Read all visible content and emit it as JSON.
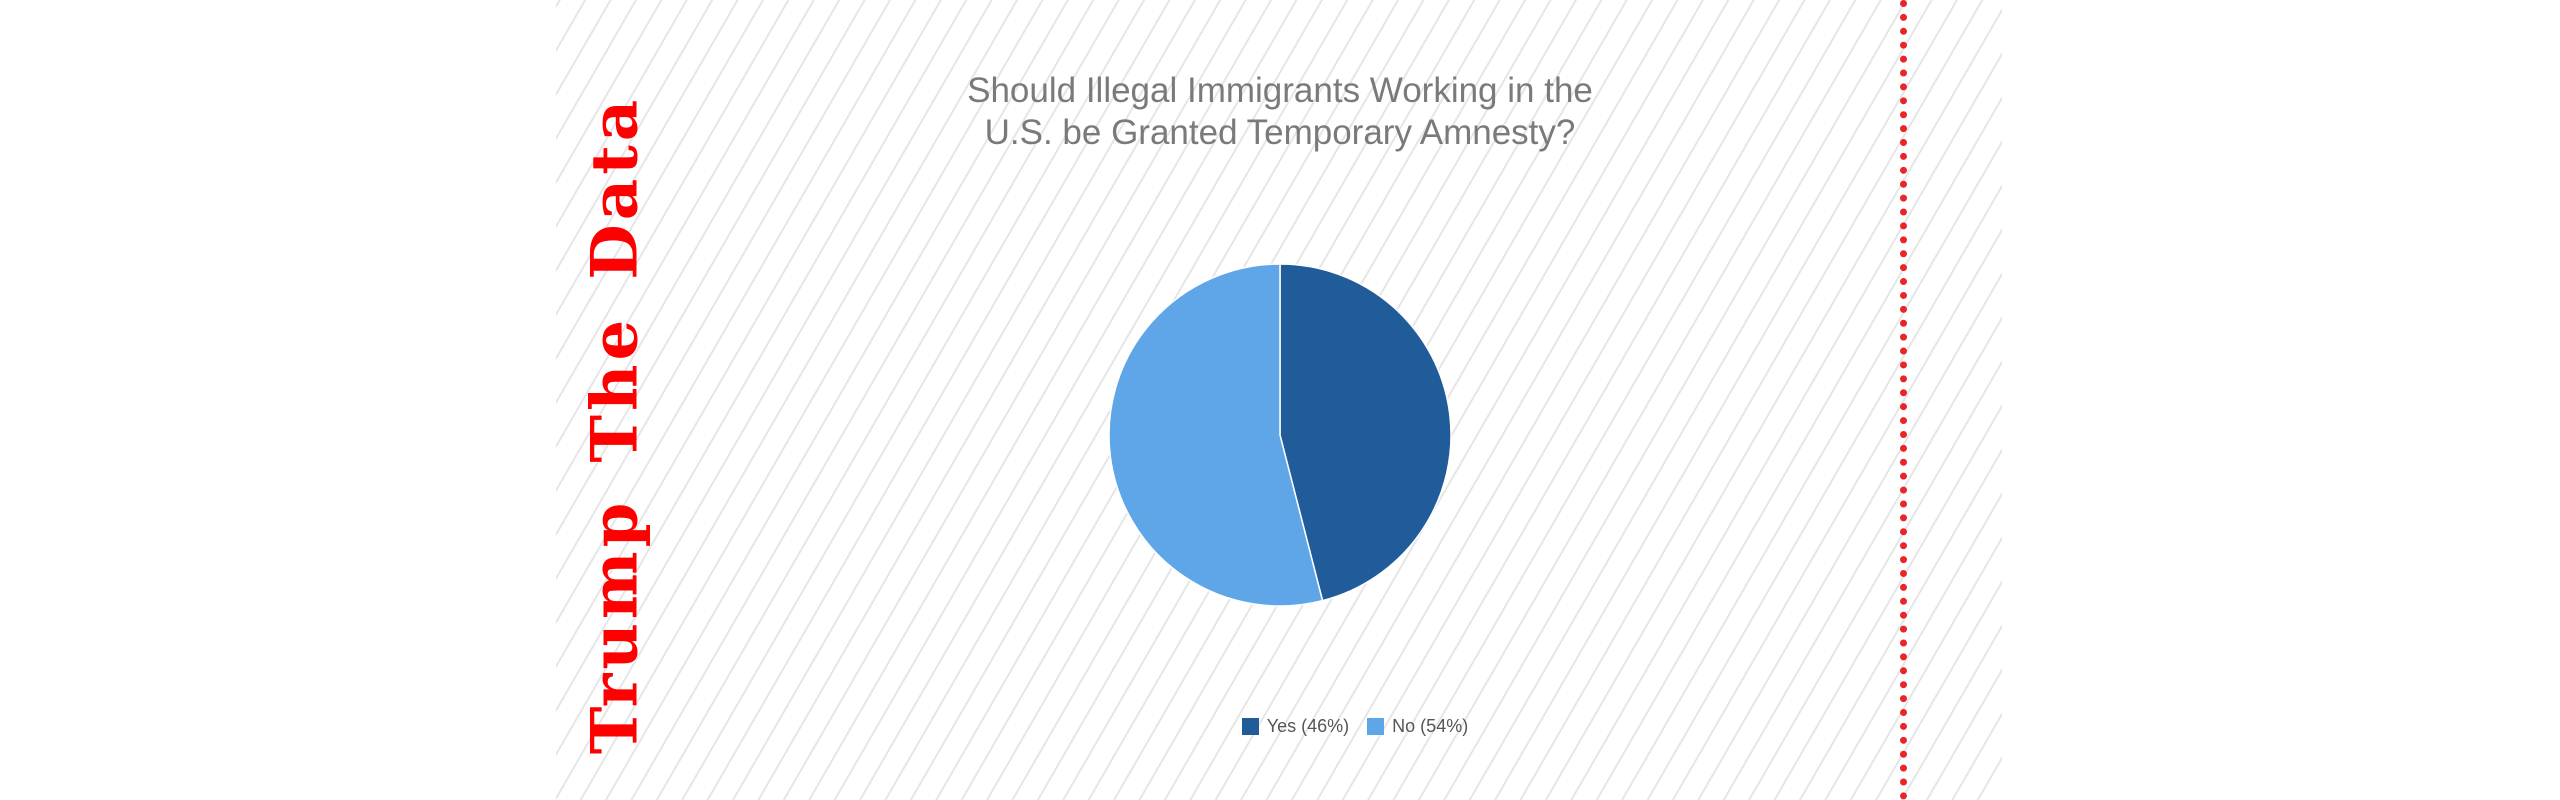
{
  "brand": {
    "words": [
      "Trump",
      "The",
      "Data"
    ],
    "color": "#ff0000"
  },
  "chart_data": {
    "type": "pie",
    "title_lines": [
      "Should Illegal Immigrants Working in the",
      "U.S. be Granted Temporary Amnesty?"
    ],
    "slices": [
      {
        "label": "Yes (46%)",
        "value": 46,
        "color": "#1f5c99"
      },
      {
        "label": "No (54%)",
        "value": 54,
        "color": "#5ea6e8"
      }
    ],
    "legend_position": "bottom",
    "start_angle_deg": 0,
    "direction": "clockwise"
  }
}
